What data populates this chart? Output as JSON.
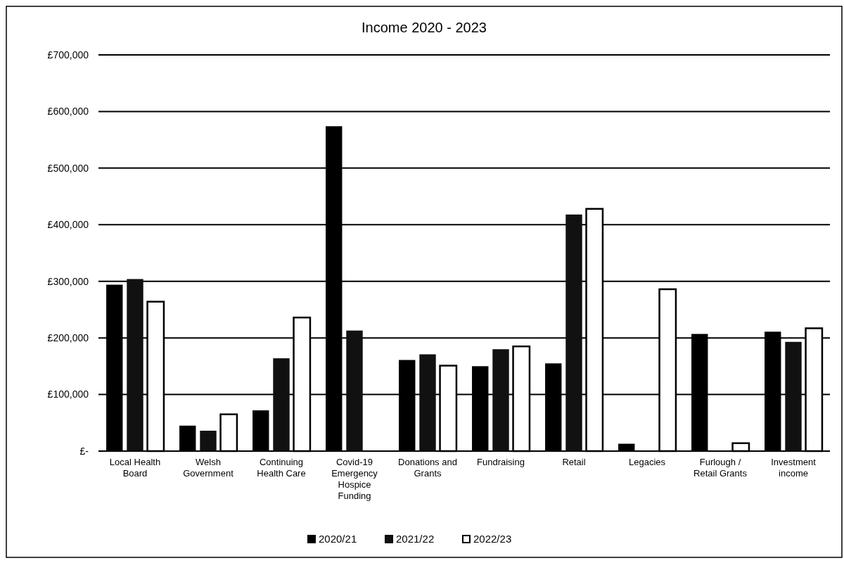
{
  "chart_data": {
    "type": "bar",
    "title": "Income 2020 - 2023",
    "categories": [
      "Local Health Board",
      "Welsh Government",
      "Continuing Health Care",
      "Covid-19 Emergency Hospice Funding",
      "Donations and Grants",
      "Fundraising",
      "Retail",
      "Legacies",
      "Furlough / Retail Grants",
      "Investment income"
    ],
    "series": [
      {
        "name": "2020/21",
        "color": "#000000",
        "values": [
          294000,
          45000,
          72000,
          574000,
          161000,
          150000,
          155000,
          13000,
          207000,
          211000
        ]
      },
      {
        "name": "2021/22",
        "color": "#111111",
        "values": [
          304000,
          36000,
          164000,
          213000,
          171000,
          180000,
          418000,
          null,
          null,
          193000
        ]
      },
      {
        "name": "2022/23",
        "color": "#ffffff",
        "values": [
          264000,
          65000,
          236000,
          0,
          151000,
          185000,
          428000,
          286000,
          14000,
          217000
        ]
      }
    ],
    "ylim": [
      0,
      700000
    ],
    "yticks": [
      {
        "value": 0,
        "label": "£-"
      },
      {
        "value": 100000,
        "label": "£100,000"
      },
      {
        "value": 200000,
        "label": "£200,000"
      },
      {
        "value": 300000,
        "label": "£300,000"
      },
      {
        "value": 400000,
        "label": "£400,000"
      },
      {
        "value": 500000,
        "label": "£500,000"
      },
      {
        "value": 600000,
        "label": "£600,000"
      },
      {
        "value": 700000,
        "label": "£700,000"
      }
    ],
    "grid": "y",
    "legend": "bottom"
  }
}
